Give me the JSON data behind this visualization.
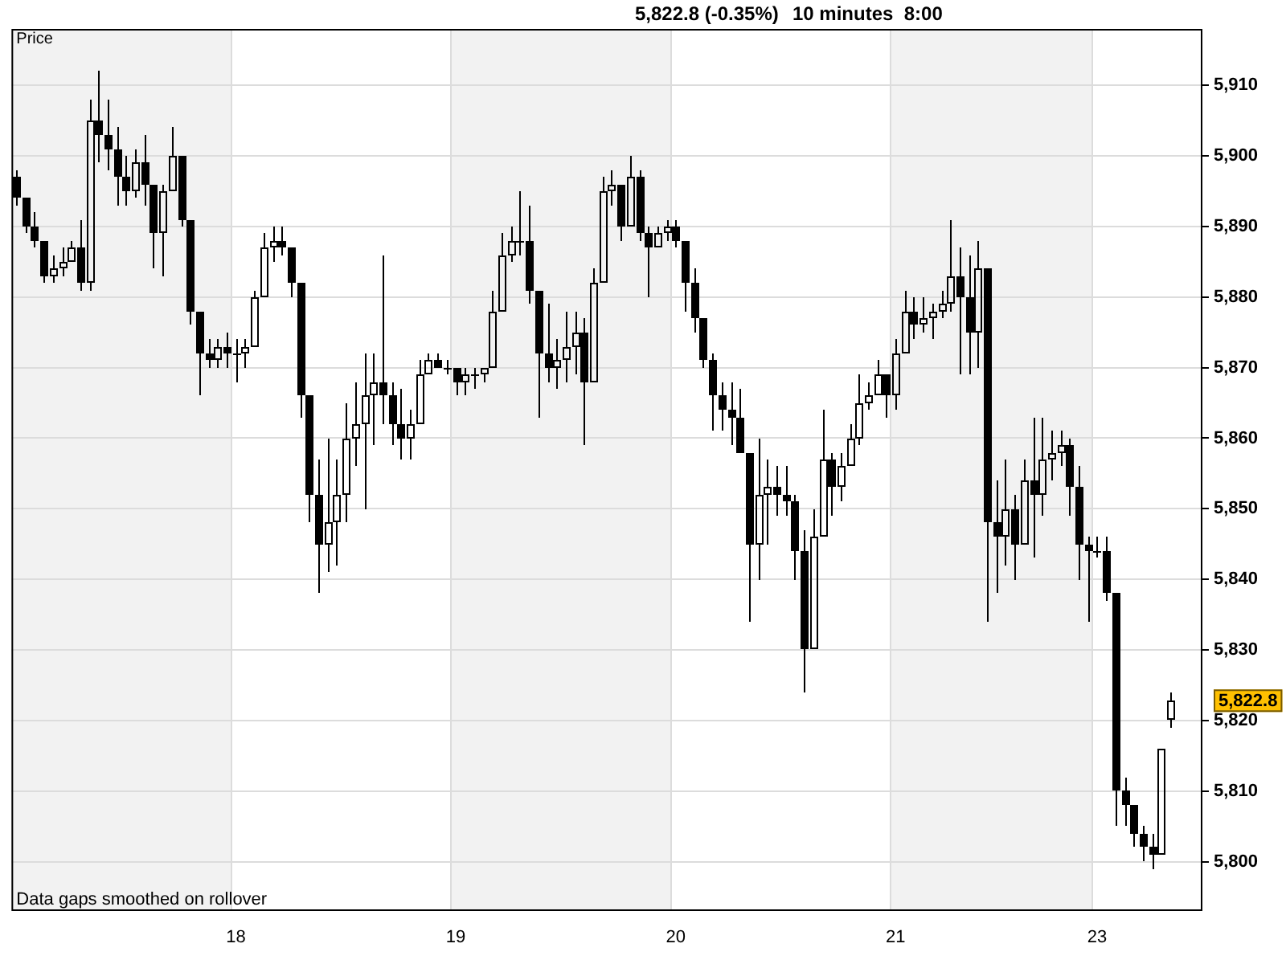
{
  "chart_data": {
    "type": "candlestick",
    "title": "5,822.8 (-0.35%)",
    "subtitle": "10 minutes  8:00",
    "ylabel": "Price",
    "annotations": [
      "Data gaps smoothed on rollover",
      "5,822.8"
    ],
    "categories": [
      null,
      null,
      null,
      null,
      null,
      null,
      null,
      null,
      null,
      null,
      null,
      null,
      null,
      null,
      null,
      null,
      null,
      null,
      null,
      null,
      null,
      null,
      null,
      null,
      "18",
      null,
      null,
      null,
      null,
      null,
      null,
      null,
      null,
      null,
      null,
      null,
      null,
      null,
      null,
      null,
      null,
      null,
      null,
      null,
      null,
      null,
      null,
      null,
      "19",
      null,
      null,
      null,
      null,
      null,
      null,
      null,
      null,
      null,
      null,
      null,
      null,
      null,
      null,
      null,
      null,
      null,
      null,
      null,
      null,
      null,
      null,
      null,
      "20",
      null,
      null,
      null,
      null,
      null,
      null,
      null,
      null,
      null,
      null,
      null,
      null,
      null,
      null,
      null,
      null,
      null,
      null,
      null,
      null,
      null,
      null,
      null,
      "21",
      null,
      null,
      null,
      null,
      null,
      null,
      null,
      null,
      null,
      null,
      null,
      null,
      null,
      null,
      null,
      null,
      null,
      null,
      null,
      null,
      null,
      "23",
      null,
      null,
      null,
      null,
      null,
      null,
      null,
      null,
      null,
      null,
      null
    ],
    "ohlc": [
      [
        5897,
        5898,
        5893,
        5894
      ],
      [
        5894,
        5894,
        5889,
        5890
      ],
      [
        5890,
        5892,
        5887,
        5888
      ],
      [
        5888,
        5888,
        5882,
        5883
      ],
      [
        5883,
        5886,
        5882,
        5884
      ],
      [
        5884,
        5887,
        5883,
        5885
      ],
      [
        5885,
        5888,
        5885,
        5887
      ],
      [
        5887,
        5891,
        5881,
        5882
      ],
      [
        5882,
        5908,
        5881,
        5905
      ],
      [
        5905,
        5912,
        5899,
        5903
      ],
      [
        5903,
        5908,
        5898,
        5901
      ],
      [
        5901,
        5904,
        5893,
        5897
      ],
      [
        5897,
        5900,
        5893,
        5895
      ],
      [
        5895,
        5901,
        5894,
        5899
      ],
      [
        5899,
        5903,
        5893,
        5896
      ],
      [
        5896,
        5896,
        5884,
        5889
      ],
      [
        5889,
        5896,
        5883,
        5895
      ],
      [
        5895,
        5904,
        5895,
        5900
      ],
      [
        5900,
        5900,
        5890,
        5891
      ],
      [
        5891,
        5891,
        5876,
        5878
      ],
      [
        5878,
        5878,
        5866,
        5872
      ],
      [
        5872,
        5874,
        5870,
        5871
      ],
      [
        5871,
        5874,
        5870,
        5873
      ],
      [
        5873,
        5875,
        5870,
        5872
      ],
      [
        5872,
        5874,
        5868,
        5872
      ],
      [
        5872,
        5874,
        5870,
        5873
      ],
      [
        5873,
        5881,
        5873,
        5880
      ],
      [
        5880,
        5889,
        5880,
        5887
      ],
      [
        5887,
        5890,
        5885,
        5888
      ],
      [
        5888,
        5890,
        5886,
        5887
      ],
      [
        5887,
        5887,
        5880,
        5882
      ],
      [
        5882,
        5882,
        5863,
        5866
      ],
      [
        5866,
        5866,
        5848,
        5852
      ],
      [
        5852,
        5857,
        5838,
        5845
      ],
      [
        5845,
        5860,
        5841,
        5848
      ],
      [
        5848,
        5857,
        5842,
        5852
      ],
      [
        5852,
        5865,
        5848,
        5860
      ],
      [
        5860,
        5868,
        5856,
        5862
      ],
      [
        5862,
        5872,
        5850,
        5866
      ],
      [
        5866,
        5872,
        5859,
        5868
      ],
      [
        5868,
        5886,
        5862,
        5866
      ],
      [
        5866,
        5868,
        5859,
        5862
      ],
      [
        5862,
        5867,
        5857,
        5860
      ],
      [
        5860,
        5864,
        5857,
        5862
      ],
      [
        5862,
        5871,
        5862,
        5869
      ],
      [
        5869,
        5872,
        5869,
        5871
      ],
      [
        5871,
        5872,
        5870,
        5870
      ],
      [
        5870,
        5871,
        5869,
        5870
      ],
      [
        5870,
        5870,
        5866,
        5868
      ],
      [
        5868,
        5870,
        5866,
        5869
      ],
      [
        5869,
        5870,
        5867,
        5869
      ],
      [
        5869,
        5870,
        5868,
        5870
      ],
      [
        5870,
        5881,
        5870,
        5878
      ],
      [
        5878,
        5889,
        5878,
        5886
      ],
      [
        5886,
        5890,
        5885,
        5888
      ],
      [
        5888,
        5895,
        5886,
        5888
      ],
      [
        5888,
        5893,
        5879,
        5881
      ],
      [
        5881,
        5881,
        5863,
        5872
      ],
      [
        5872,
        5879,
        5868,
        5870
      ],
      [
        5870,
        5874,
        5867,
        5871
      ],
      [
        5871,
        5878,
        5868,
        5873
      ],
      [
        5873,
        5878,
        5869,
        5875
      ],
      [
        5875,
        5877,
        5859,
        5868
      ],
      [
        5868,
        5884,
        5868,
        5882
      ],
      [
        5882,
        5897,
        5882,
        5895
      ],
      [
        5895,
        5898,
        5893,
        5896
      ],
      [
        5896,
        5896,
        5888,
        5890
      ],
      [
        5890,
        5900,
        5890,
        5897
      ],
      [
        5897,
        5898,
        5888,
        5889
      ],
      [
        5889,
        5890,
        5880,
        5887
      ],
      [
        5887,
        5890,
        5887,
        5889
      ],
      [
        5889,
        5891,
        5888,
        5890
      ],
      [
        5890,
        5891,
        5887,
        5888
      ],
      [
        5888,
        5888,
        5878,
        5882
      ],
      [
        5882,
        5884,
        5875,
        5877
      ],
      [
        5877,
        5877,
        5870,
        5871
      ],
      [
        5871,
        5872,
        5861,
        5866
      ],
      [
        5866,
        5868,
        5861,
        5864
      ],
      [
        5864,
        5868,
        5859,
        5863
      ],
      [
        5863,
        5867,
        5858,
        5858
      ],
      [
        5858,
        5858,
        5834,
        5845
      ],
      [
        5845,
        5860,
        5840,
        5852
      ],
      [
        5852,
        5857,
        5845,
        5853
      ],
      [
        5853,
        5856,
        5849,
        5852
      ],
      [
        5852,
        5856,
        5849,
        5851
      ],
      [
        5851,
        5852,
        5840,
        5844
      ],
      [
        5844,
        5847,
        5824,
        5830
      ],
      [
        5830,
        5850,
        5830,
        5846
      ],
      [
        5846,
        5864,
        5846,
        5857
      ],
      [
        5857,
        5858,
        5849,
        5853
      ],
      [
        5853,
        5858,
        5851,
        5856
      ],
      [
        5856,
        5862,
        5856,
        5860
      ],
      [
        5860,
        5869,
        5859,
        5865
      ],
      [
        5865,
        5868,
        5864,
        5866
      ],
      [
        5866,
        5871,
        5866,
        5869
      ],
      [
        5869,
        5869,
        5863,
        5866
      ],
      [
        5866,
        5874,
        5864,
        5872
      ],
      [
        5872,
        5881,
        5872,
        5878
      ],
      [
        5878,
        5880,
        5874,
        5876
      ],
      [
        5876,
        5880,
        5875,
        5877
      ],
      [
        5877,
        5879,
        5874,
        5878
      ],
      [
        5878,
        5881,
        5877,
        5879
      ],
      [
        5879,
        5891,
        5878,
        5883
      ],
      [
        5883,
        5887,
        5869,
        5880
      ],
      [
        5880,
        5886,
        5869,
        5875
      ],
      [
        5875,
        5888,
        5870,
        5884
      ],
      [
        5884,
        5884,
        5834,
        5848
      ],
      [
        5848,
        5854,
        5838,
        5846
      ],
      [
        5846,
        5857,
        5842,
        5850
      ],
      [
        5850,
        5852,
        5840,
        5845
      ],
      [
        5845,
        5857,
        5845,
        5854
      ],
      [
        5854,
        5863,
        5843,
        5852
      ],
      [
        5852,
        5863,
        5849,
        5857
      ],
      [
        5857,
        5861,
        5854,
        5858
      ],
      [
        5858,
        5861,
        5856,
        5859
      ],
      [
        5859,
        5860,
        5849,
        5853
      ],
      [
        5853,
        5856,
        5840,
        5845
      ],
      [
        5845,
        5846,
        5834,
        5844
      ],
      [
        5844,
        5846,
        5843,
        5844
      ],
      [
        5844,
        5846,
        5837,
        5838
      ],
      [
        5838,
        5838,
        5805,
        5810
      ],
      [
        5810,
        5812,
        5805,
        5808
      ],
      [
        5808,
        5808,
        5802,
        5804
      ],
      [
        5804,
        5805,
        5800,
        5802
      ],
      [
        5802,
        5804,
        5799,
        5801
      ],
      [
        5801,
        5816,
        5801,
        5816
      ],
      [
        5820,
        5824,
        5819,
        5822.8
      ],
      null,
      null,
      null
    ],
    "color": "#000000",
    "ylim": [
      5793,
      5918
    ],
    "yticks": [
      {
        "value": 5800,
        "label": "5,800"
      },
      {
        "value": 5810,
        "label": "5,810"
      },
      {
        "value": 5820,
        "label": "5,820"
      },
      {
        "value": 5830,
        "label": "5,830"
      },
      {
        "value": 5840,
        "label": "5,840"
      },
      {
        "value": 5850,
        "label": "5,850"
      },
      {
        "value": 5860,
        "label": "5,860"
      },
      {
        "value": 5870,
        "label": "5,870"
      },
      {
        "value": 5880,
        "label": "5,880"
      },
      {
        "value": 5890,
        "label": "5,890"
      },
      {
        "value": 5900,
        "label": "5,900"
      },
      {
        "value": 5910,
        "label": "5,910"
      }
    ],
    "grid": true
  }
}
